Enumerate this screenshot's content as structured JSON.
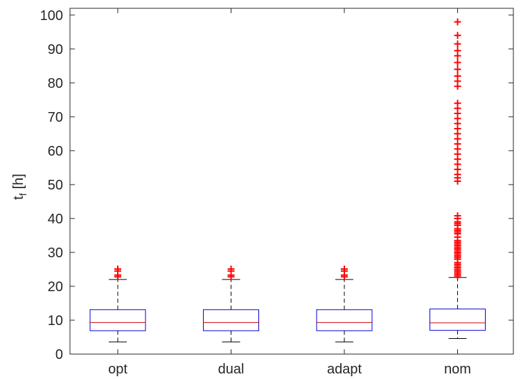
{
  "chart_data": {
    "type": "box",
    "title": "",
    "xlabel": "",
    "ylabel": {
      "base": "t",
      "subscript": "f",
      "unit": "[h]"
    },
    "ylim": [
      0,
      102
    ],
    "yticks": [
      0,
      10,
      20,
      30,
      40,
      50,
      60,
      70,
      80,
      90,
      100
    ],
    "grid": false,
    "colors": {
      "box": "#0000cc",
      "median": "#cc0000",
      "whisker": "#000000",
      "outlier": "#ff0000",
      "axis": "#262626"
    },
    "categories": [
      "opt",
      "dual",
      "adapt",
      "nom"
    ],
    "boxes": [
      {
        "category": "opt",
        "whisker_low": 3.6,
        "q1": 6.9,
        "median": 9.3,
        "q3": 13.1,
        "whisker_high": 22.0,
        "outliers": [
          22.8,
          23.3,
          24.5,
          25.1
        ]
      },
      {
        "category": "dual",
        "whisker_low": 3.6,
        "q1": 6.9,
        "median": 9.3,
        "q3": 13.1,
        "whisker_high": 22.0,
        "outliers": [
          22.8,
          23.3,
          24.5,
          25.1
        ]
      },
      {
        "category": "adapt",
        "whisker_low": 3.6,
        "q1": 6.9,
        "median": 9.3,
        "q3": 13.1,
        "whisker_high": 22.0,
        "outliers": [
          22.8,
          23.3,
          24.5,
          25.1
        ]
      },
      {
        "category": "nom",
        "whisker_low": 4.6,
        "q1": 7.0,
        "median": 9.2,
        "q3": 13.3,
        "whisker_high": 22.6,
        "outliers": [
          23.0,
          23.5,
          24.0,
          24.5,
          25.0,
          25.5,
          26.0,
          26.5,
          27.0,
          28.0,
          28.5,
          29.0,
          29.5,
          30.0,
          30.5,
          31.0,
          31.5,
          32.0,
          32.5,
          33.0,
          33.5,
          34.5,
          35.5,
          36.0,
          36.5,
          37.0,
          38.0,
          38.5,
          39.0,
          40.0,
          40.8,
          51.0,
          52.0,
          53.0,
          54.5,
          56.0,
          57.5,
          59.0,
          60.5,
          62.0,
          63.5,
          65.0,
          66.5,
          68.0,
          69.5,
          71.0,
          72.5,
          74.0,
          79.0,
          80.5,
          82.0,
          84.0,
          86.0,
          88.0,
          89.5,
          91.5,
          94.0,
          98.0
        ]
      }
    ]
  }
}
